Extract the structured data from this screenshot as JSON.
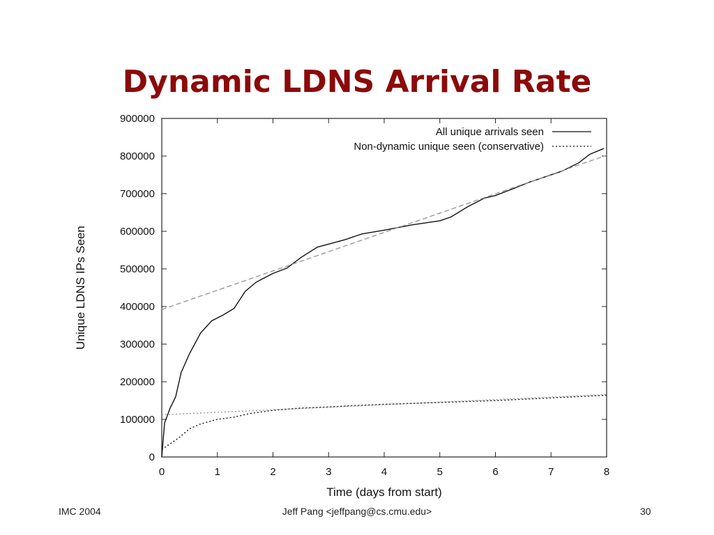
{
  "slide": {
    "title": "Dynamic LDNS Arrival Rate",
    "footer_left": "IMC 2004",
    "footer_center": "Jeff Pang <jeffpang@cs.cmu.edu>",
    "footer_right": "30"
  },
  "chart_data": {
    "type": "line",
    "title": "",
    "xlabel": "Time (days from start)",
    "ylabel": "Unique LDNS IPs Seen",
    "xlim": [
      0,
      8
    ],
    "ylim": [
      0,
      900000
    ],
    "xticks": [
      0,
      1,
      2,
      3,
      4,
      5,
      6,
      7,
      8
    ],
    "yticks": [
      0,
      100000,
      200000,
      300000,
      400000,
      500000,
      600000,
      700000,
      800000,
      900000
    ],
    "grid": false,
    "legend_position": "top-right",
    "legend": [
      {
        "label": "All unique arrivals seen",
        "style": "solid"
      },
      {
        "label": "Non-dynamic unique seen (conservative)",
        "style": "dotted"
      }
    ],
    "series": [
      {
        "name": "All unique arrivals seen",
        "style": "solid",
        "color": "#111111",
        "points": [
          [
            0,
            0
          ],
          [
            0.05,
            90000
          ],
          [
            0.15,
            130000
          ],
          [
            0.25,
            160000
          ],
          [
            0.35,
            225000
          ],
          [
            0.5,
            275000
          ],
          [
            0.7,
            330000
          ],
          [
            0.9,
            362000
          ],
          [
            1.1,
            377000
          ],
          [
            1.3,
            395000
          ],
          [
            1.5,
            440000
          ],
          [
            1.7,
            465000
          ],
          [
            2.0,
            488000
          ],
          [
            2.25,
            502000
          ],
          [
            2.5,
            530000
          ],
          [
            2.8,
            558000
          ],
          [
            3.0,
            566000
          ],
          [
            3.3,
            578000
          ],
          [
            3.6,
            593000
          ],
          [
            4.0,
            603000
          ],
          [
            4.5,
            617000
          ],
          [
            5.0,
            628000
          ],
          [
            5.2,
            638000
          ],
          [
            5.5,
            665000
          ],
          [
            5.8,
            688000
          ],
          [
            6.0,
            695000
          ],
          [
            6.3,
            712000
          ],
          [
            6.6,
            730000
          ],
          [
            6.9,
            745000
          ],
          [
            7.2,
            760000
          ],
          [
            7.5,
            782000
          ],
          [
            7.7,
            805000
          ],
          [
            7.95,
            820000
          ]
        ]
      },
      {
        "name": "All unique arrivals seen (trend)",
        "style": "dashed",
        "color": "#999999",
        "points": [
          [
            0,
            392000
          ],
          [
            8,
            802000
          ]
        ]
      },
      {
        "name": "Non-dynamic unique seen (conservative)",
        "style": "dotted",
        "color": "#111111",
        "points": [
          [
            0,
            20000
          ],
          [
            0.15,
            35000
          ],
          [
            0.3,
            50000
          ],
          [
            0.5,
            75000
          ],
          [
            0.7,
            88000
          ],
          [
            1.0,
            100000
          ],
          [
            1.3,
            106000
          ],
          [
            1.6,
            116000
          ],
          [
            2.0,
            124000
          ],
          [
            2.5,
            130000
          ],
          [
            3.0,
            133000
          ],
          [
            3.5,
            137000
          ],
          [
            4.0,
            140000
          ],
          [
            5.0,
            145000
          ],
          [
            6.0,
            150000
          ],
          [
            7.0,
            157000
          ],
          [
            8.0,
            164000
          ]
        ]
      },
      {
        "name": "Non-dynamic unique seen (trend)",
        "style": "dotted",
        "color": "#999999",
        "points": [
          [
            0,
            112000
          ],
          [
            8,
            166000
          ]
        ]
      }
    ]
  }
}
